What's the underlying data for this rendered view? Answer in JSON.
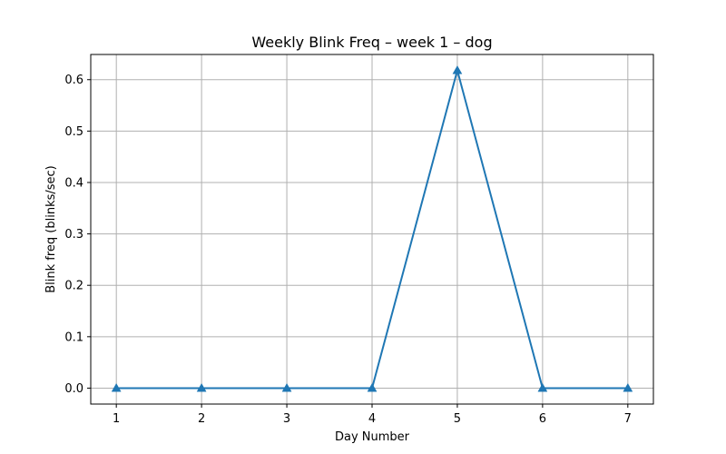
{
  "chart_data": {
    "type": "line",
    "title": "Weekly Blink Freq – week 1 – dog",
    "xlabel": "Day Number",
    "ylabel": "Blink freq (blinks/sec)",
    "x": [
      1,
      2,
      3,
      4,
      5,
      6,
      7
    ],
    "series": [
      {
        "values": [
          0.0,
          0.0,
          0.0,
          0.0,
          0.618,
          0.0,
          0.0
        ],
        "color": "#1f77b4",
        "marker": "triangle-up"
      }
    ],
    "xlim": [
      0.7,
      7.3
    ],
    "ylim": [
      -0.031,
      0.649
    ],
    "xticks": [
      1,
      2,
      3,
      4,
      5,
      6,
      7
    ],
    "xtick_labels": [
      "1",
      "2",
      "3",
      "4",
      "5",
      "6",
      "7"
    ],
    "yticks": [
      0.0,
      0.1,
      0.2,
      0.3,
      0.4,
      0.5,
      0.6
    ],
    "ytick_labels": [
      "0.0",
      "0.1",
      "0.2",
      "0.3",
      "0.4",
      "0.5",
      "0.6"
    ],
    "grid": true
  }
}
